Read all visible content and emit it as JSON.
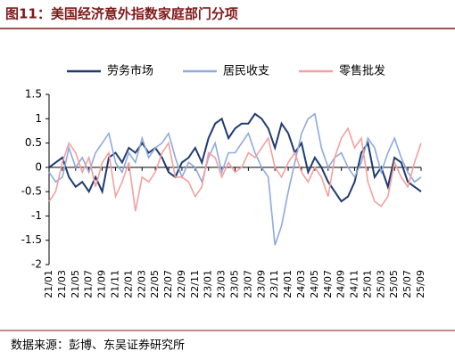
{
  "chart_data": {
    "type": "line",
    "title": "图11：美国经济意外指数家庭部门分项",
    "source": "数据来源：彭博、东吴证券研究所",
    "categories": [
      "21/01",
      null,
      "21/03",
      null,
      "21/05",
      null,
      "21/07",
      null,
      "21/09",
      null,
      "21/11",
      null,
      "22/01",
      null,
      "22/03",
      null,
      "22/05",
      null,
      "22/07",
      null,
      "22/09",
      null,
      "22/11",
      null,
      "23/01",
      null,
      "23/03",
      null,
      "23/05",
      null,
      "23/07",
      null,
      "23/09",
      null,
      "23/11",
      null,
      "24/01",
      null,
      "24/03",
      null,
      "24/05",
      null,
      "24/07",
      null,
      "24/09",
      null,
      "24/11",
      null,
      "25/01",
      null,
      "25/03",
      null,
      "25/05",
      null,
      "25/07",
      null,
      "25/09"
    ],
    "series": [
      {
        "name": "劳务市场",
        "color": "#1f3b70",
        "values": [
          0,
          0.1,
          0.2,
          -0.2,
          -0.4,
          -0.3,
          -0.5,
          -0.2,
          -0.5,
          0.2,
          0.3,
          0.1,
          0.4,
          0.3,
          0.5,
          0.3,
          0.4,
          0.2,
          -0.1,
          -0.2,
          0.1,
          0.2,
          0.4,
          0.1,
          0.6,
          0.9,
          1.0,
          0.6,
          0.8,
          0.9,
          0.9,
          1.1,
          1.0,
          0.8,
          0.4,
          0.9,
          0.7,
          0.3,
          0.5,
          -0.1,
          0.2,
          0.0,
          -0.3,
          -0.5,
          -0.7,
          -0.6,
          -0.3,
          0.3,
          0.5,
          -0.2,
          0.0,
          -0.4,
          0.2,
          0.1,
          -0.3,
          -0.4,
          -0.5
        ]
      },
      {
        "name": "居民收支",
        "color": "#8faadc",
        "values": [
          -0.1,
          -0.3,
          -0.2,
          0.4,
          0.0,
          0.2,
          -0.1,
          0.3,
          0.5,
          0.7,
          0.1,
          -0.1,
          0.3,
          0.1,
          0.6,
          0.2,
          0.4,
          0.5,
          0.7,
          0.2,
          -0.2,
          0.1,
          0.0,
          -0.3,
          0.2,
          0.5,
          -0.1,
          0.3,
          0.3,
          0.5,
          0.7,
          0.3,
          0.0,
          -0.2,
          -1.6,
          -1.2,
          -0.5,
          0.1,
          0.7,
          1.0,
          1.1,
          0.4,
          0.0,
          0.2,
          0.3,
          0.0,
          -0.2,
          0.1,
          0.6,
          0.4,
          -0.1,
          0.3,
          0.6,
          0.2,
          -0.1,
          -0.3,
          -0.2
        ]
      },
      {
        "name": "零售批发",
        "color": "#f4a0a0",
        "values": [
          -0.7,
          -0.5,
          0.1,
          0.5,
          0.3,
          -0.1,
          0.2,
          -0.4,
          0.1,
          0.3,
          -0.6,
          -0.3,
          0.1,
          -0.9,
          -0.2,
          -0.3,
          -0.1,
          0.3,
          0.5,
          -0.2,
          -0.2,
          -0.3,
          -0.6,
          -0.4,
          0.3,
          0.2,
          -0.2,
          0.1,
          -0.1,
          0.0,
          0.3,
          0.2,
          0.4,
          0.6,
          0.0,
          -0.2,
          0.1,
          0.3,
          -0.1,
          -0.3,
          0.0,
          -0.2,
          -0.6,
          0.2,
          0.6,
          0.8,
          0.4,
          0.6,
          -0.3,
          -0.7,
          -0.8,
          -0.6,
          0.1,
          -0.2,
          -0.4,
          0.1,
          0.5
        ]
      }
    ],
    "ylim": [
      -2,
      1.5
    ],
    "yticks": [
      -2,
      -1.5,
      -1,
      -0.5,
      0,
      0.5,
      1,
      1.5
    ],
    "legend": "top"
  }
}
